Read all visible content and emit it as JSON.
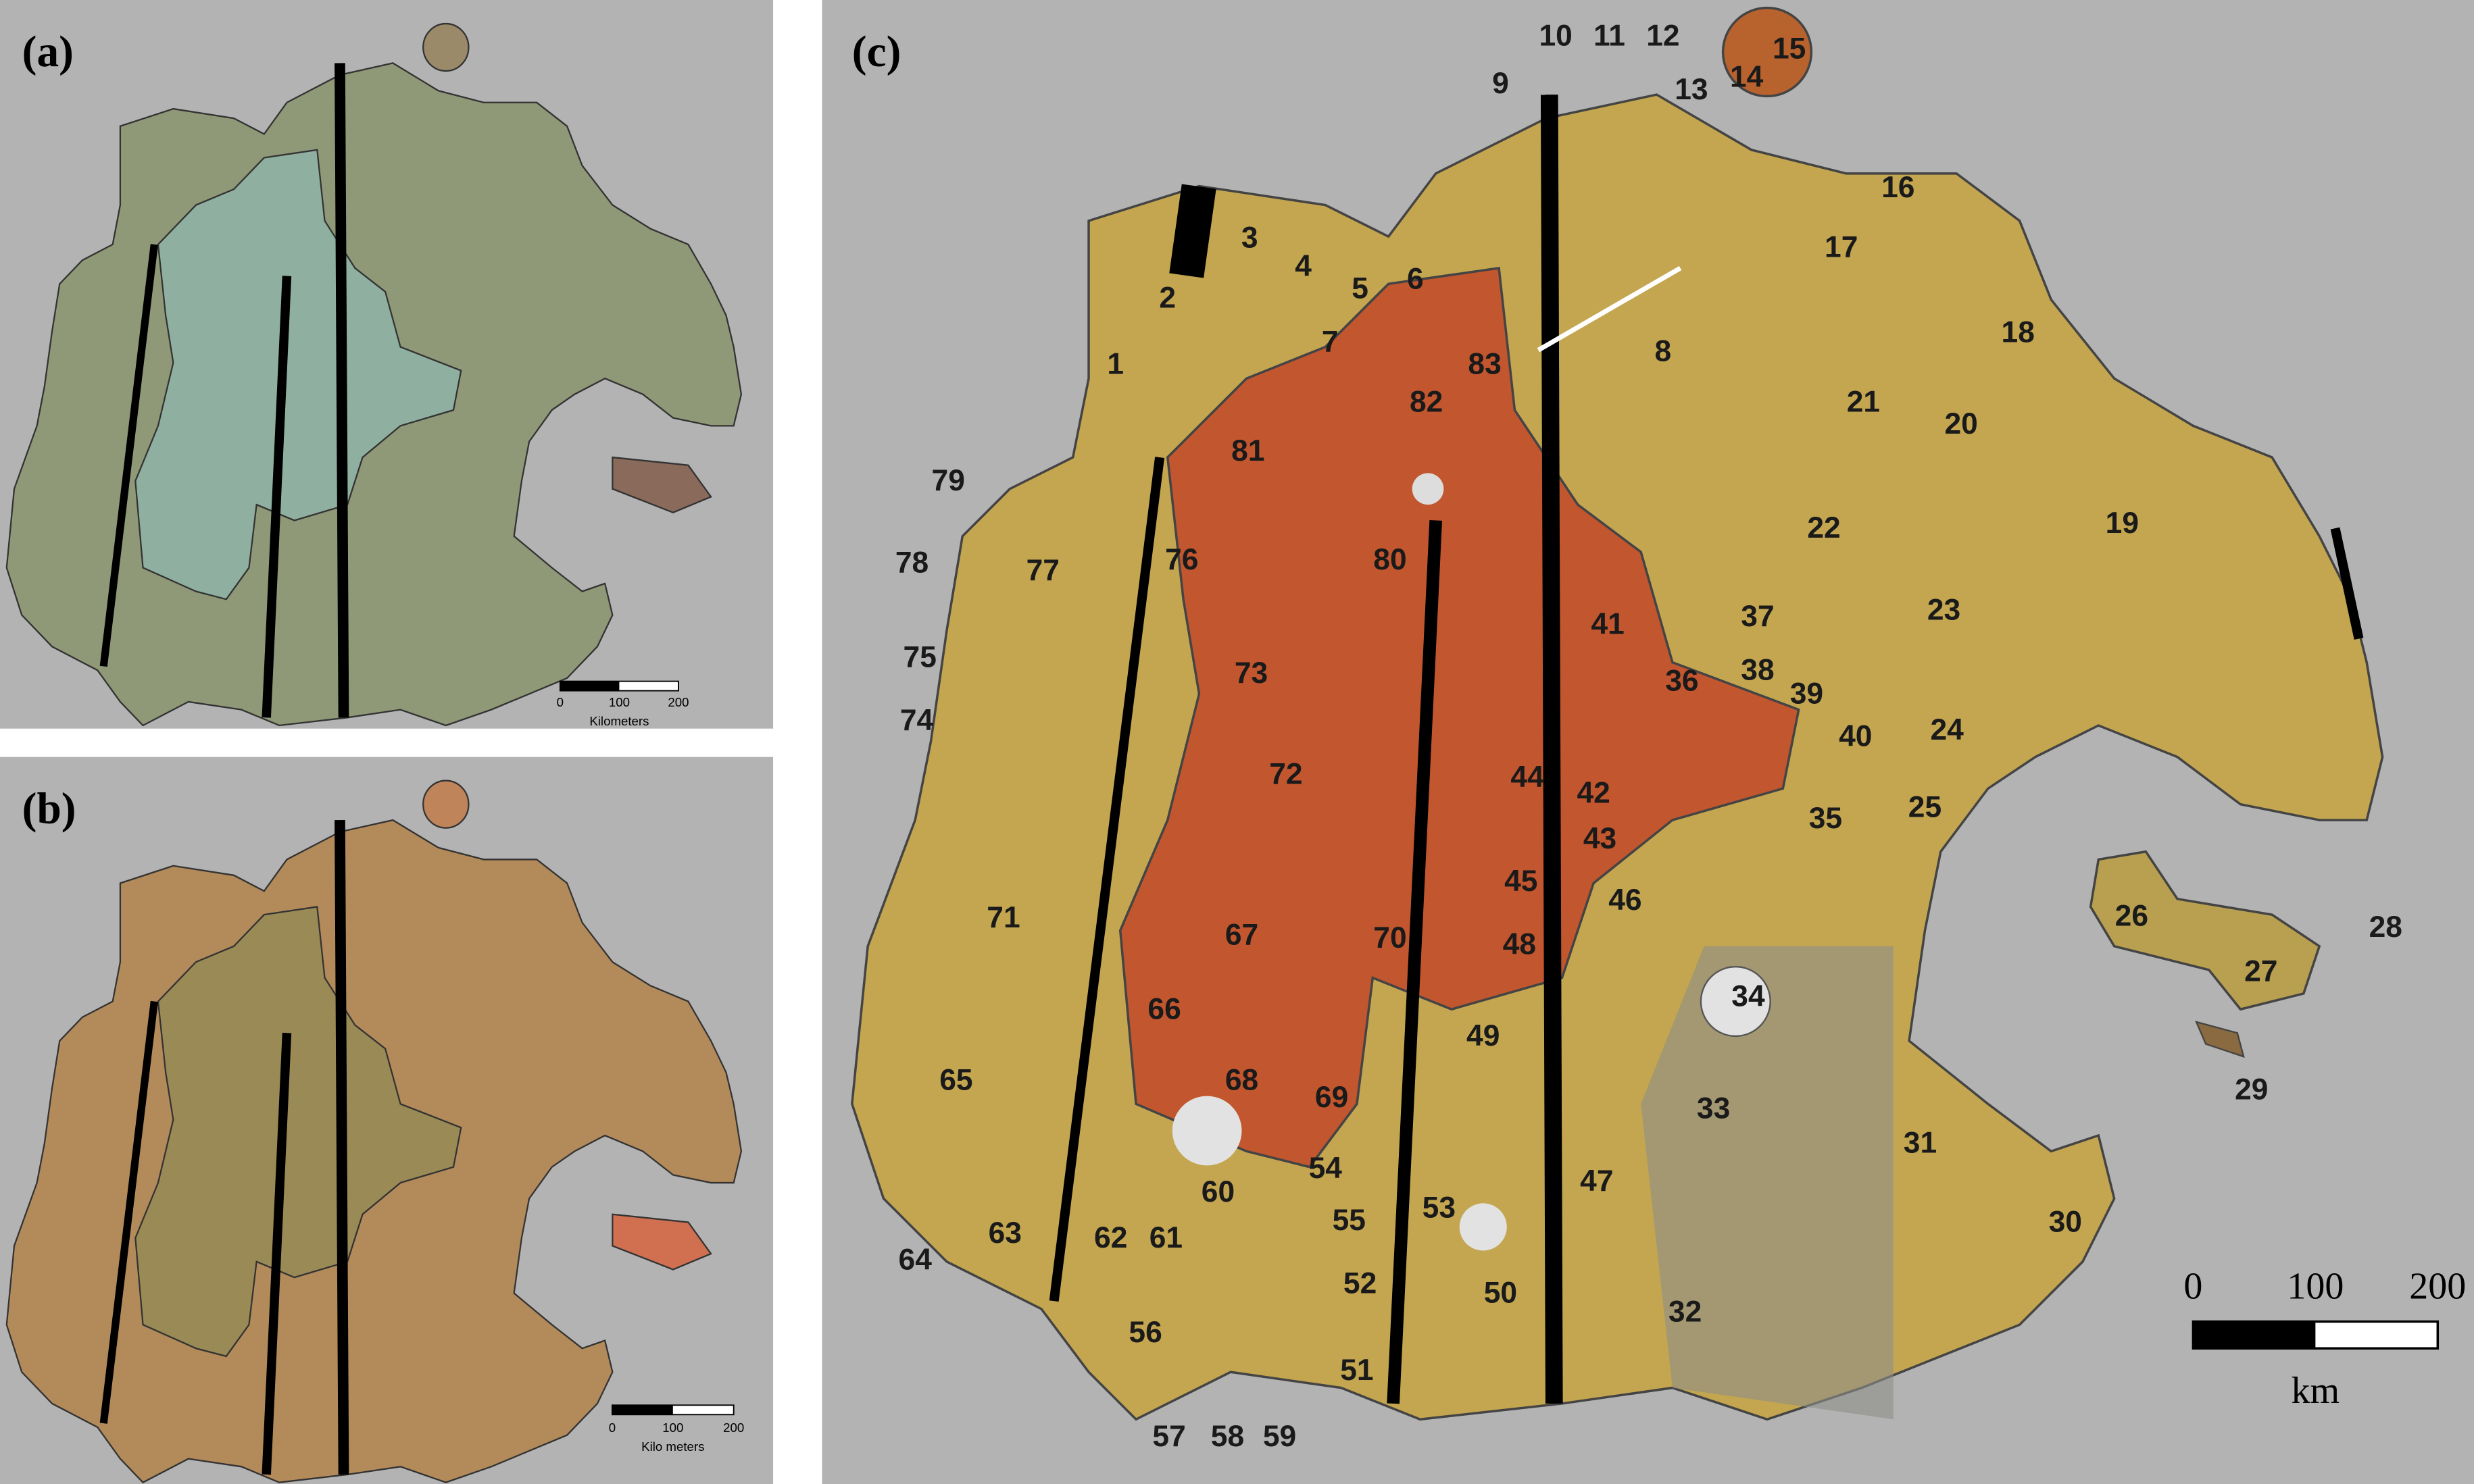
{
  "panels": [
    {
      "label": "(a)",
      "scale_bar": {
        "ticks": [
          0,
          100,
          200
        ],
        "unit": "Kilometers"
      }
    },
    {
      "label": "(b)",
      "scale_bar": {
        "ticks": [
          0,
          100,
          200
        ],
        "unit": "Kilo meters"
      }
    },
    {
      "label": "(c)",
      "unit_labels": [
        "1",
        "2",
        "3",
        "4",
        "5",
        "6",
        "7",
        "8",
        "9",
        "10",
        "11",
        "12",
        "13",
        "14",
        "15",
        "16",
        "17",
        "18",
        "19",
        "20",
        "21",
        "22",
        "23",
        "24",
        "25",
        "26",
        "27",
        "28",
        "29",
        "30",
        "31",
        "32",
        "33",
        "34",
        "35",
        "36",
        "37",
        "38",
        "39",
        "40",
        "41",
        "42",
        "43",
        "44",
        "45",
        "46",
        "47",
        "48",
        "49",
        "50",
        "51",
        "52",
        "53",
        "54",
        "55",
        "56",
        "57",
        "58",
        "59",
        "60",
        "61",
        "62",
        "63",
        "64",
        "65",
        "66",
        "67",
        "68",
        "69",
        "70",
        "71",
        "72",
        "73",
        "74",
        "75",
        "76",
        "77",
        "78",
        "79",
        "80",
        "81",
        "82",
        "83"
      ],
      "scale_bar": {
        "ticks": [
          0,
          100,
          200
        ],
        "unit": "km"
      }
    }
  ]
}
